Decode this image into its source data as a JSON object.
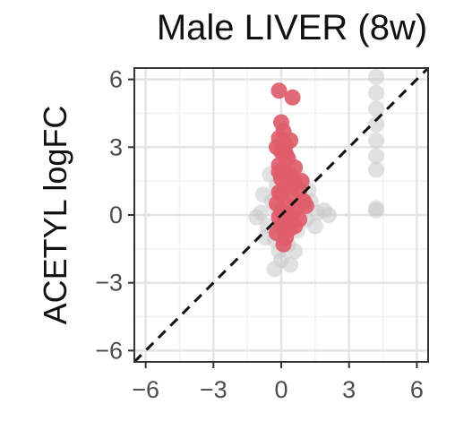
{
  "chart_data": {
    "type": "scatter",
    "title": "Male LIVER (8w)",
    "xlabel": "",
    "ylabel": "ACETYL logFC",
    "xlim": [
      -6.5,
      6.5
    ],
    "ylim": [
      -6.5,
      6.5
    ],
    "xticks": [
      -6,
      -3,
      0,
      3,
      6
    ],
    "yticks": [
      -6,
      -3,
      0,
      3,
      6
    ],
    "xtick_labels": [
      "−6",
      "−3",
      "0",
      "3",
      "6"
    ],
    "ytick_labels": [
      "−6",
      "−3",
      "0",
      "3",
      "6"
    ],
    "grid": true,
    "reference_line": {
      "style": "dashed",
      "slope": 1,
      "intercept": 0,
      "color": "#111111"
    },
    "series": [
      {
        "color": "#c8c8c8",
        "points": [
          [
            -0.9,
            0.1
          ],
          [
            -0.6,
            -0.5
          ],
          [
            -0.4,
            0.6
          ],
          [
            -0.3,
            -1.1
          ],
          [
            -0.2,
            1.3
          ],
          [
            -0.1,
            -1.6
          ],
          [
            0.0,
            -2.0
          ],
          [
            0.1,
            1.8
          ],
          [
            0.3,
            -1.3
          ],
          [
            0.5,
            0.9
          ],
          [
            0.7,
            -0.7
          ],
          [
            0.9,
            0.4
          ],
          [
            1.1,
            -0.2
          ],
          [
            1.3,
            0.6
          ],
          [
            1.6,
            0.1
          ],
          [
            1.9,
            0.2
          ],
          [
            2.1,
            0.0
          ],
          [
            -1.1,
            -0.1
          ],
          [
            -0.8,
            0.9
          ],
          [
            0.2,
            2.4
          ],
          [
            -0.3,
            -2.4
          ],
          [
            0.6,
            -1.6
          ],
          [
            1.2,
            1.1
          ],
          [
            -0.5,
            1.8
          ],
          [
            0.4,
            -2.2
          ],
          [
            0.8,
            1.6
          ],
          [
            -0.7,
            -1.0
          ],
          [
            0.0,
            2.9
          ],
          [
            1.5,
            -0.5
          ],
          [
            -0.2,
            0.3
          ],
          [
            4.2,
            6.1
          ],
          [
            4.2,
            5.4
          ],
          [
            4.2,
            4.7
          ],
          [
            4.2,
            4.0
          ],
          [
            4.2,
            3.3
          ],
          [
            4.2,
            2.6
          ],
          [
            4.2,
            2.0
          ],
          [
            4.2,
            0.3
          ],
          [
            4.2,
            0.2
          ]
        ]
      },
      {
        "color": "#e05c6b",
        "points": [
          [
            -0.1,
            5.5
          ],
          [
            0.5,
            5.2
          ],
          [
            0.0,
            4.1
          ],
          [
            0.1,
            3.7
          ],
          [
            -0.1,
            3.4
          ],
          [
            0.2,
            3.1
          ],
          [
            0.0,
            2.8
          ],
          [
            0.3,
            2.5
          ],
          [
            -0.1,
            2.2
          ],
          [
            0.1,
            2.0
          ],
          [
            0.4,
            1.8
          ],
          [
            0.0,
            1.6
          ],
          [
            0.6,
            1.4
          ],
          [
            0.2,
            1.2
          ],
          [
            0.8,
            1.1
          ],
          [
            0.0,
            0.9
          ],
          [
            0.5,
            0.8
          ],
          [
            1.0,
            0.6
          ],
          [
            -0.2,
            0.5
          ],
          [
            0.3,
            0.4
          ],
          [
            0.7,
            0.3
          ],
          [
            0.1,
            0.1
          ],
          [
            0.5,
            0.0
          ],
          [
            -0.1,
            -0.1
          ],
          [
            0.3,
            -0.3
          ],
          [
            0.8,
            -0.2
          ],
          [
            0.0,
            -0.5
          ],
          [
            0.4,
            -0.6
          ],
          [
            -0.2,
            -0.8
          ],
          [
            0.2,
            -1.0
          ],
          [
            0.1,
            -1.3
          ],
          [
            -0.1,
            1.0
          ],
          [
            0.9,
            1.5
          ],
          [
            0.2,
            2.7
          ],
          [
            -0.2,
            3.0
          ],
          [
            0.4,
            3.3
          ],
          [
            0.6,
            2.1
          ],
          [
            0.0,
            0.2
          ],
          [
            1.1,
            0.4
          ],
          [
            0.2,
            -0.7
          ],
          [
            0.6,
            -0.5
          ],
          [
            -0.1,
            1.9
          ],
          [
            0.3,
            1.5
          ]
        ]
      }
    ]
  }
}
